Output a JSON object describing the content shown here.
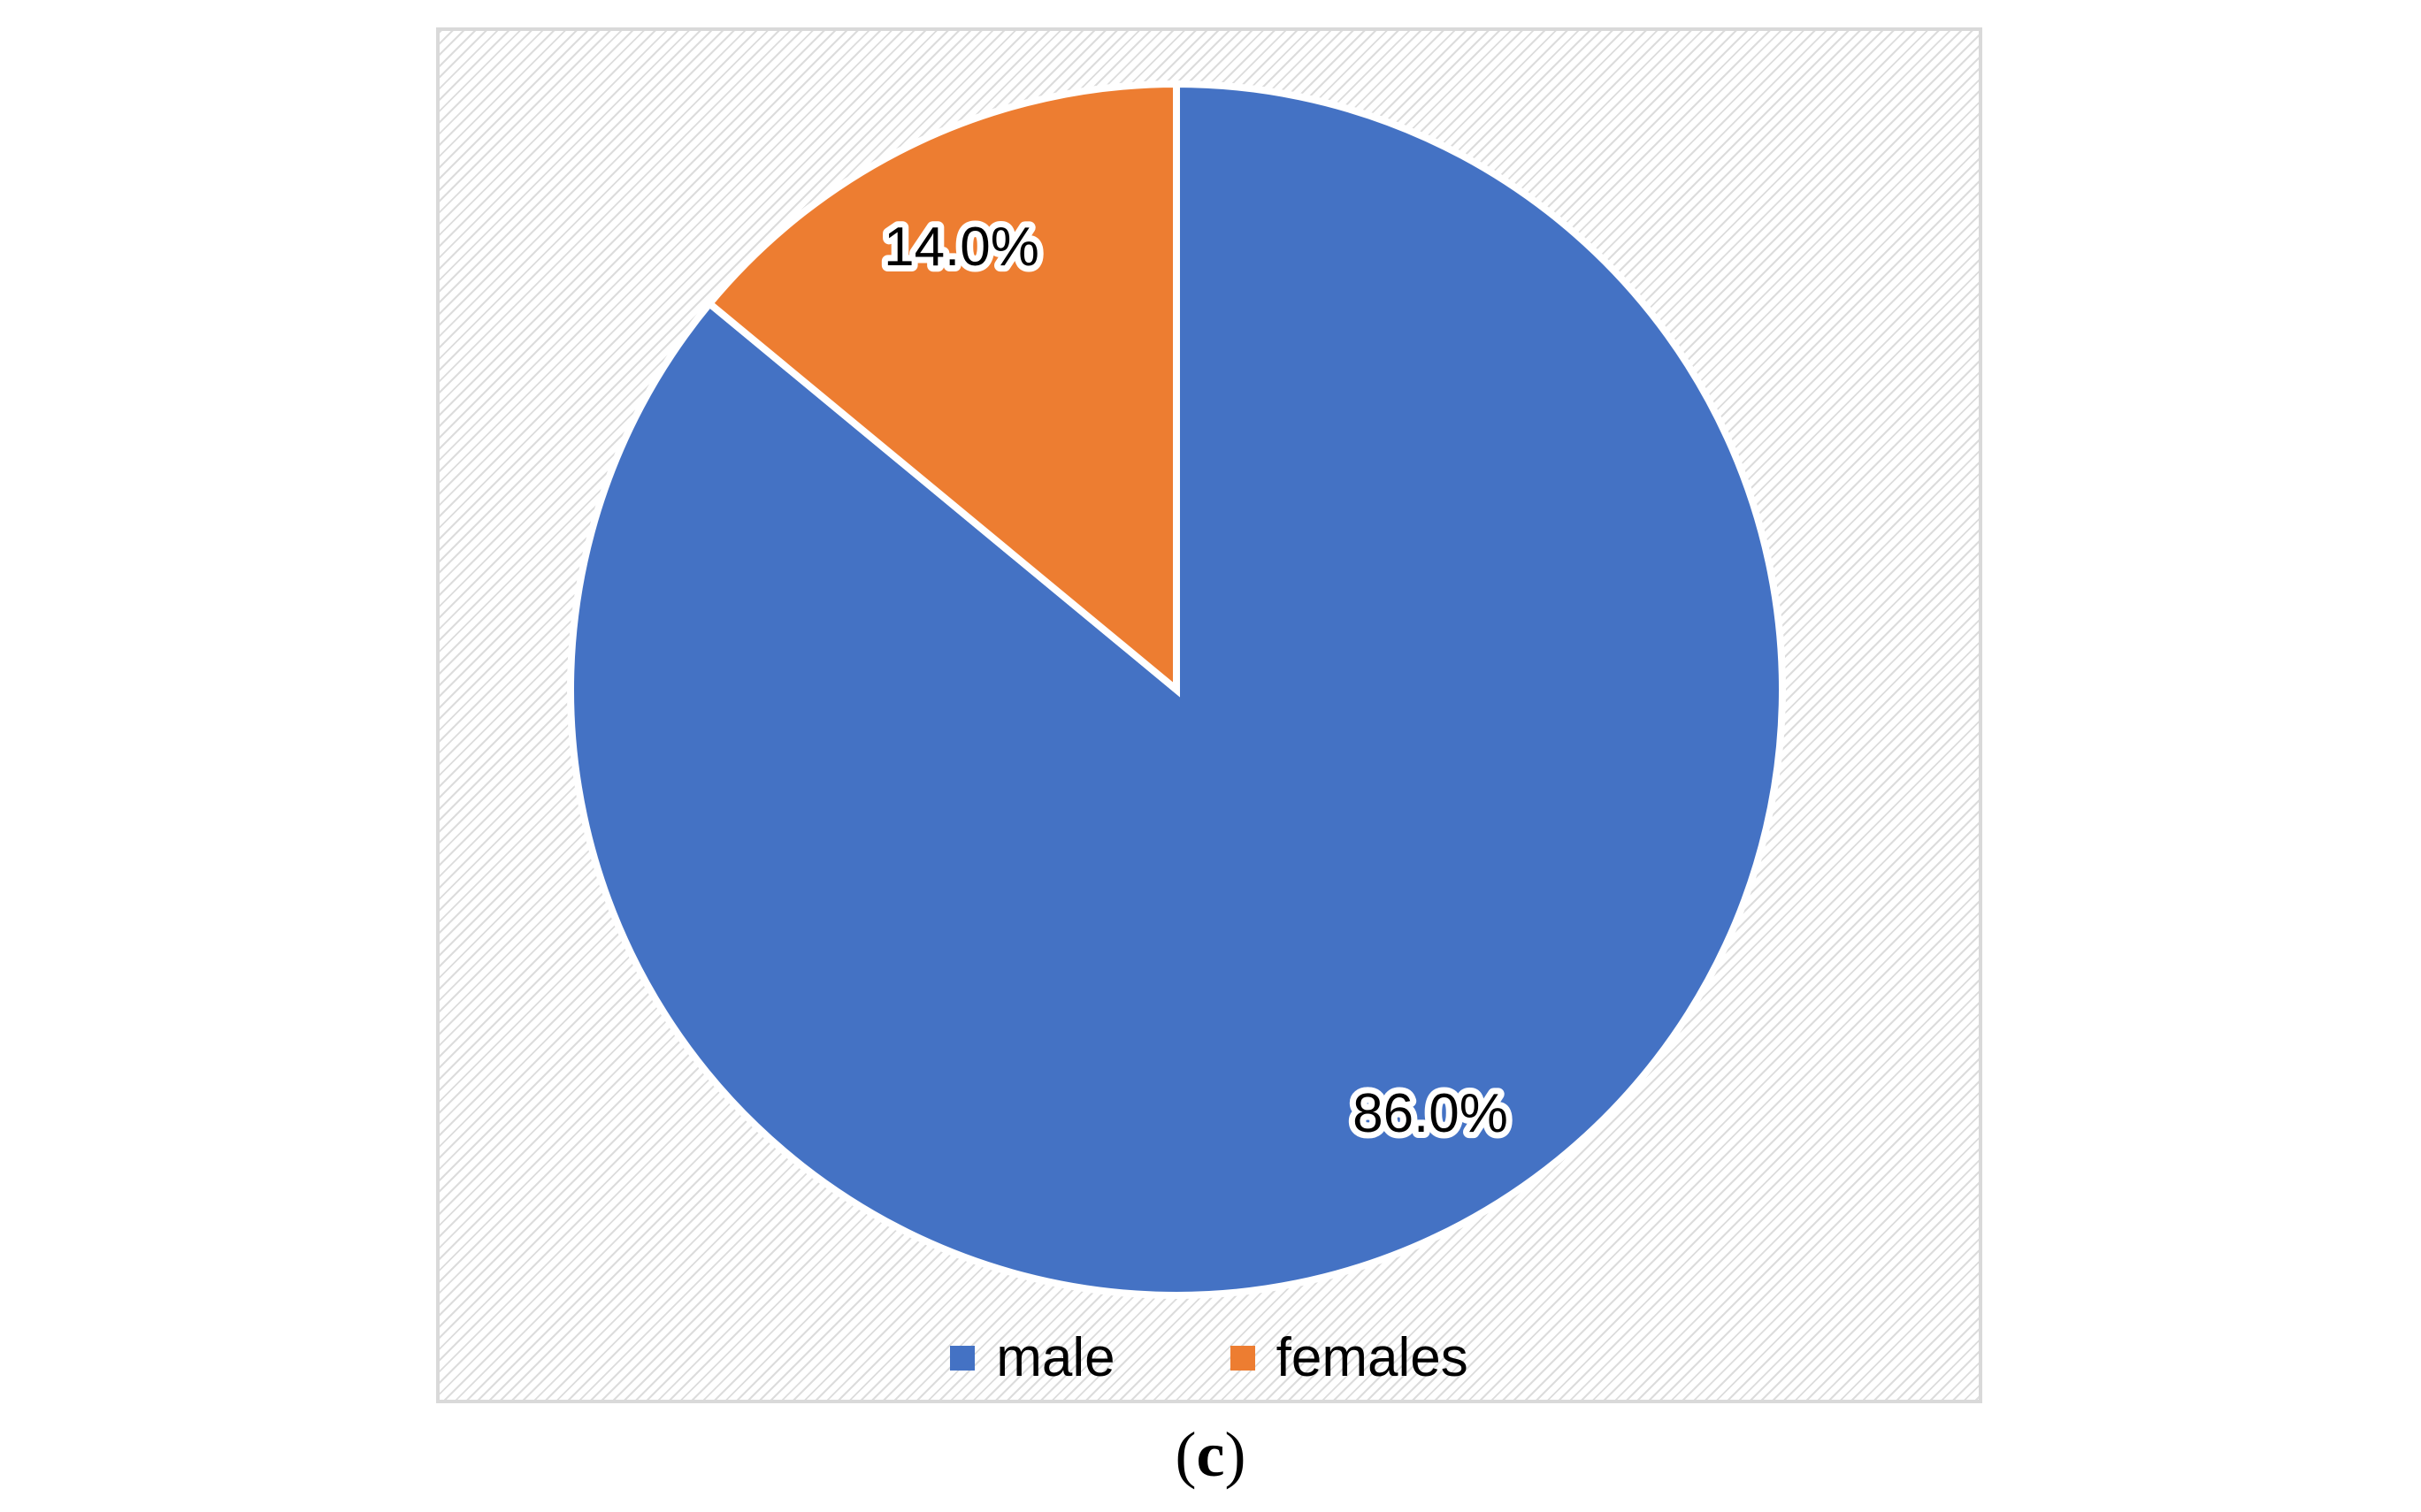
{
  "chart_data": {
    "type": "pie",
    "slices": [
      {
        "name": "male",
        "value": 86.0,
        "label": "86.0%",
        "color": "#4472C4"
      },
      {
        "name": "females",
        "value": 14.0,
        "label": "14.0%",
        "color": "#ED7D31"
      }
    ],
    "legend_position": "bottom"
  },
  "caption": {
    "open": "(",
    "letter": "c",
    "close": ")"
  }
}
